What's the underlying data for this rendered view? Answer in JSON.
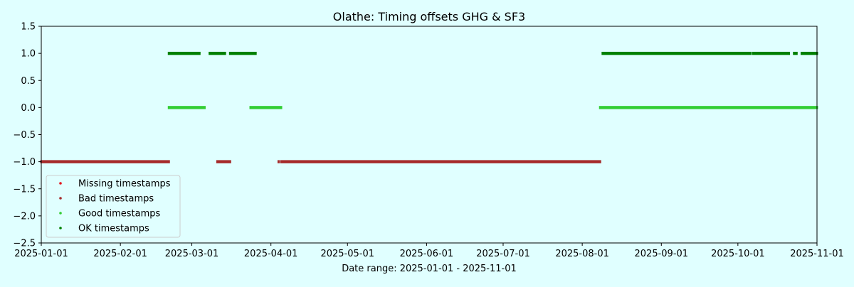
{
  "chart_data": {
    "type": "scatter",
    "title": "Olathe: Timing offsets GHG & SF3",
    "xlabel": "Date range: 2025-01-01 - 2025-11-01",
    "ylabel": "",
    "xlim": [
      "2025-01-01",
      "2025-11-01"
    ],
    "ylim": [
      -2.5,
      1.5
    ],
    "x_ticks": [
      "2025-01-01",
      "2025-02-01",
      "2025-03-01",
      "2025-04-01",
      "2025-05-01",
      "2025-06-01",
      "2025-07-01",
      "2025-08-01",
      "2025-09-01",
      "2025-10-01",
      "2025-11-01"
    ],
    "y_ticks": [
      "1.5",
      "1.0",
      "0.5",
      "0.0",
      "−0.5",
      "−1.0",
      "−1.5",
      "−2.0",
      "−2.5"
    ],
    "grid": false,
    "legend_position": "lower-left",
    "series": [
      {
        "name": "Missing timestamps",
        "color": "#e4131b",
        "y": -1.0,
        "ranges": []
      },
      {
        "name": "Bad timestamps",
        "color": "#a52a2a",
        "y": -1.0,
        "ranges": [
          [
            "2025-01-01",
            "2025-02-20"
          ],
          [
            "2025-03-11",
            "2025-03-16"
          ],
          [
            "2025-04-04",
            "2025-04-04"
          ],
          [
            "2025-04-05",
            "2025-08-08"
          ]
        ]
      },
      {
        "name": "Good timestamps",
        "color": "#32cd32",
        "y": 0.0,
        "ranges": [
          [
            "2025-02-20",
            "2025-03-06"
          ],
          [
            "2025-03-24",
            "2025-04-05"
          ],
          [
            "2025-08-08",
            "2025-11-01"
          ]
        ]
      },
      {
        "name": "OK timestamps",
        "color": "#008000",
        "y": 1.0,
        "ranges": [
          [
            "2025-02-20",
            "2025-03-04"
          ],
          [
            "2025-03-08",
            "2025-03-14"
          ],
          [
            "2025-03-16",
            "2025-03-26"
          ],
          [
            "2025-08-09",
            "2025-10-06"
          ],
          [
            "2025-10-07",
            "2025-10-21"
          ],
          [
            "2025-10-23",
            "2025-10-24"
          ],
          [
            "2025-10-26",
            "2025-11-01"
          ]
        ]
      }
    ]
  }
}
